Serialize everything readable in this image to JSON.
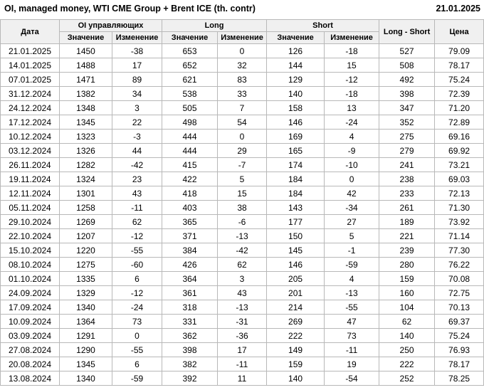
{
  "title": "OI, managed money, WTI CME Group + Brent ICE (th. contr)",
  "report_date": "21.01.2025",
  "colors": {
    "positive_change": "#008000",
    "negative_change": "#cc0000",
    "neutral_change": "#000000",
    "header_background": "#f0f0f0",
    "grid_border": "#b8b8b8"
  },
  "table": {
    "headers": {
      "date": "Дата",
      "oi_group": "OI управляющих",
      "long_group": "Long",
      "short_group": "Short",
      "long_short": "Long - Short",
      "price": "Цена",
      "sub_value": "Значение",
      "sub_change": "Изменение"
    },
    "rows": [
      {
        "date": "21.01.2025",
        "oi": "1450",
        "oi_chg": "-38",
        "oi_chg_c": "neg",
        "long": "653",
        "long_chg": "0",
        "long_chg_c": "zero",
        "short": "126",
        "short_chg": "-18",
        "short_chg_c": "neg",
        "ls": "527",
        "price": "79.09"
      },
      {
        "date": "14.01.2025",
        "oi": "1488",
        "oi_chg": "17",
        "oi_chg_c": "pos",
        "long": "652",
        "long_chg": "32",
        "long_chg_c": "pos",
        "short": "144",
        "short_chg": "15",
        "short_chg_c": "pos",
        "ls": "508",
        "price": "78.17"
      },
      {
        "date": "07.01.2025",
        "oi": "1471",
        "oi_chg": "89",
        "oi_chg_c": "pos",
        "long": "621",
        "long_chg": "83",
        "long_chg_c": "pos",
        "short": "129",
        "short_chg": "-12",
        "short_chg_c": "neg",
        "ls": "492",
        "price": "75.24"
      },
      {
        "date": "31.12.2024",
        "oi": "1382",
        "oi_chg": "34",
        "oi_chg_c": "pos",
        "long": "538",
        "long_chg": "33",
        "long_chg_c": "pos",
        "short": "140",
        "short_chg": "-18",
        "short_chg_c": "neg",
        "ls": "398",
        "price": "72.39"
      },
      {
        "date": "24.12.2024",
        "oi": "1348",
        "oi_chg": "3",
        "oi_chg_c": "pos",
        "long": "505",
        "long_chg": "7",
        "long_chg_c": "pos",
        "short": "158",
        "short_chg": "13",
        "short_chg_c": "pos",
        "ls": "347",
        "price": "71.20"
      },
      {
        "date": "17.12.2024",
        "oi": "1345",
        "oi_chg": "22",
        "oi_chg_c": "pos",
        "long": "498",
        "long_chg": "54",
        "long_chg_c": "pos",
        "short": "146",
        "short_chg": "-24",
        "short_chg_c": "neg",
        "ls": "352",
        "price": "72.89"
      },
      {
        "date": "10.12.2024",
        "oi": "1323",
        "oi_chg": "-3",
        "oi_chg_c": "neg",
        "long": "444",
        "long_chg": "0",
        "long_chg_c": "neg",
        "short": "169",
        "short_chg": "4",
        "short_chg_c": "pos",
        "ls": "275",
        "price": "69.16"
      },
      {
        "date": "03.12.2024",
        "oi": "1326",
        "oi_chg": "44",
        "oi_chg_c": "pos",
        "long": "444",
        "long_chg": "29",
        "long_chg_c": "pos",
        "short": "165",
        "short_chg": "-9",
        "short_chg_c": "neg",
        "ls": "279",
        "price": "69.92"
      },
      {
        "date": "26.11.2024",
        "oi": "1282",
        "oi_chg": "-42",
        "oi_chg_c": "neg",
        "long": "415",
        "long_chg": "-7",
        "long_chg_c": "neg",
        "short": "174",
        "short_chg": "-10",
        "short_chg_c": "neg",
        "ls": "241",
        "price": "73.21"
      },
      {
        "date": "19.11.2024",
        "oi": "1324",
        "oi_chg": "23",
        "oi_chg_c": "pos",
        "long": "422",
        "long_chg": "5",
        "long_chg_c": "pos",
        "short": "184",
        "short_chg": "0",
        "short_chg_c": "neg",
        "ls": "238",
        "price": "69.03"
      },
      {
        "date": "12.11.2024",
        "oi": "1301",
        "oi_chg": "43",
        "oi_chg_c": "pos",
        "long": "418",
        "long_chg": "15",
        "long_chg_c": "pos",
        "short": "184",
        "short_chg": "42",
        "short_chg_c": "pos",
        "ls": "233",
        "price": "72.13"
      },
      {
        "date": "05.11.2024",
        "oi": "1258",
        "oi_chg": "-11",
        "oi_chg_c": "neg",
        "long": "403",
        "long_chg": "38",
        "long_chg_c": "pos",
        "short": "143",
        "short_chg": "-34",
        "short_chg_c": "neg",
        "ls": "261",
        "price": "71.30"
      },
      {
        "date": "29.10.2024",
        "oi": "1269",
        "oi_chg": "62",
        "oi_chg_c": "pos",
        "long": "365",
        "long_chg": "-6",
        "long_chg_c": "neg",
        "short": "177",
        "short_chg": "27",
        "short_chg_c": "pos",
        "ls": "189",
        "price": "73.92"
      },
      {
        "date": "22.10.2024",
        "oi": "1207",
        "oi_chg": "-12",
        "oi_chg_c": "neg",
        "long": "371",
        "long_chg": "-13",
        "long_chg_c": "neg",
        "short": "150",
        "short_chg": "5",
        "short_chg_c": "pos",
        "ls": "221",
        "price": "71.14"
      },
      {
        "date": "15.10.2024",
        "oi": "1220",
        "oi_chg": "-55",
        "oi_chg_c": "neg",
        "long": "384",
        "long_chg": "-42",
        "long_chg_c": "neg",
        "short": "145",
        "short_chg": "-1",
        "short_chg_c": "neg",
        "ls": "239",
        "price": "77.30"
      },
      {
        "date": "08.10.2024",
        "oi": "1275",
        "oi_chg": "-60",
        "oi_chg_c": "neg",
        "long": "426",
        "long_chg": "62",
        "long_chg_c": "pos",
        "short": "146",
        "short_chg": "-59",
        "short_chg_c": "neg",
        "ls": "280",
        "price": "76.22"
      },
      {
        "date": "01.10.2024",
        "oi": "1335",
        "oi_chg": "6",
        "oi_chg_c": "pos",
        "long": "364",
        "long_chg": "3",
        "long_chg_c": "pos",
        "short": "205",
        "short_chg": "4",
        "short_chg_c": "pos",
        "ls": "159",
        "price": "70.08"
      },
      {
        "date": "24.09.2024",
        "oi": "1329",
        "oi_chg": "-12",
        "oi_chg_c": "neg",
        "long": "361",
        "long_chg": "43",
        "long_chg_c": "pos",
        "short": "201",
        "short_chg": "-13",
        "short_chg_c": "neg",
        "ls": "160",
        "price": "72.75"
      },
      {
        "date": "17.09.2024",
        "oi": "1340",
        "oi_chg": "-24",
        "oi_chg_c": "neg",
        "long": "318",
        "long_chg": "-13",
        "long_chg_c": "neg",
        "short": "214",
        "short_chg": "-55",
        "short_chg_c": "neg",
        "ls": "104",
        "price": "70.13"
      },
      {
        "date": "10.09.2024",
        "oi": "1364",
        "oi_chg": "73",
        "oi_chg_c": "pos",
        "long": "331",
        "long_chg": "-31",
        "long_chg_c": "neg",
        "short": "269",
        "short_chg": "47",
        "short_chg_c": "pos",
        "ls": "62",
        "price": "69.37"
      },
      {
        "date": "03.09.2024",
        "oi": "1291",
        "oi_chg": "0",
        "oi_chg_c": "pos",
        "long": "362",
        "long_chg": "-36",
        "long_chg_c": "neg",
        "short": "222",
        "short_chg": "73",
        "short_chg_c": "pos",
        "ls": "140",
        "price": "75.24"
      },
      {
        "date": "27.08.2024",
        "oi": "1290",
        "oi_chg": "-55",
        "oi_chg_c": "neg",
        "long": "398",
        "long_chg": "17",
        "long_chg_c": "pos",
        "short": "149",
        "short_chg": "-11",
        "short_chg_c": "neg",
        "ls": "250",
        "price": "76.93"
      },
      {
        "date": "20.08.2024",
        "oi": "1345",
        "oi_chg": "6",
        "oi_chg_c": "pos",
        "long": "382",
        "long_chg": "-11",
        "long_chg_c": "neg",
        "short": "159",
        "short_chg": "19",
        "short_chg_c": "pos",
        "ls": "222",
        "price": "78.17"
      },
      {
        "date": "13.08.2024",
        "oi": "1340",
        "oi_chg": "-59",
        "oi_chg_c": "neg",
        "long": "392",
        "long_chg": "11",
        "long_chg_c": "pos",
        "short": "140",
        "short_chg": "-54",
        "short_chg_c": "neg",
        "ls": "252",
        "price": "78.25"
      }
    ]
  }
}
